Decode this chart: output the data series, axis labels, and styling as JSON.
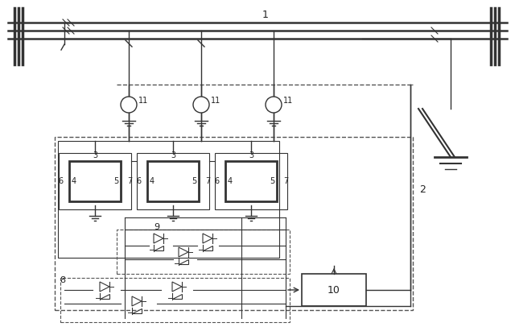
{
  "fig_width": 6.4,
  "fig_height": 4.11,
  "dpi": 100,
  "bg_color": "#ffffff",
  "line_color": "#333333",
  "dashed_color": "#555555",
  "label_color": "#222222",
  "label_1": "1",
  "label_2": "2",
  "label_3": "3",
  "label_4": "4",
  "label_5": "5",
  "label_6": "6",
  "label_7": "7",
  "label_8": "8",
  "label_9": "9",
  "label_10": "10",
  "label_11": "11"
}
